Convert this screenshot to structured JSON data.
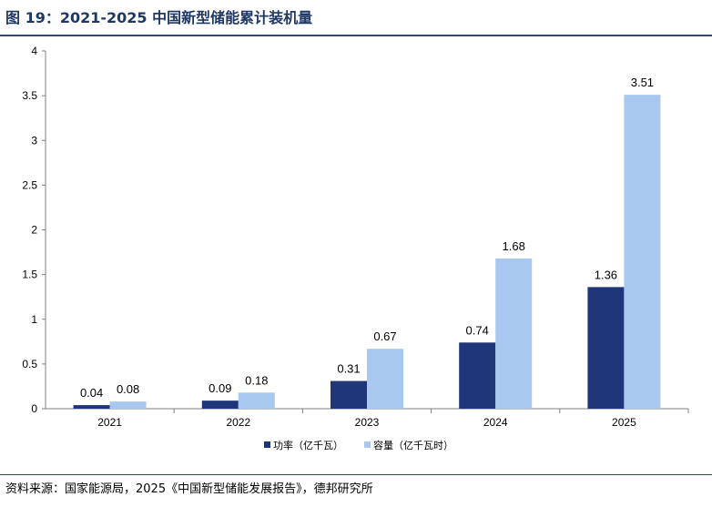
{
  "header": {
    "title": "图 19：2021-2025 中国新型储能累计装机量"
  },
  "footer": {
    "source": "资料来源：国家能源局，2025《中国新型储能发展报告》，德邦研究所"
  },
  "chart_data": {
    "type": "bar",
    "categories": [
      "2021",
      "2022",
      "2023",
      "2024",
      "2025"
    ],
    "series": [
      {
        "name": "功率（亿千瓦）",
        "values": [
          0.04,
          0.09,
          0.31,
          0.74,
          1.36
        ],
        "color": "#1f3778"
      },
      {
        "name": "容量（亿千瓦时）",
        "values": [
          0.08,
          0.18,
          0.67,
          1.68,
          3.51
        ],
        "color": "#a9c8ef"
      }
    ],
    "value_labels": [
      [
        "0.04",
        "0.09",
        "0.31",
        "0.74",
        "1.36"
      ],
      [
        "0.08",
        "0.18",
        "0.67",
        "1.68",
        "3.51"
      ]
    ],
    "yticks": [
      "0",
      "0.5",
      "1",
      "1.5",
      "2",
      "2.5",
      "3",
      "3.5",
      "4"
    ],
    "ylim": [
      0,
      4
    ],
    "grid": false,
    "legend_position": "bottom"
  }
}
